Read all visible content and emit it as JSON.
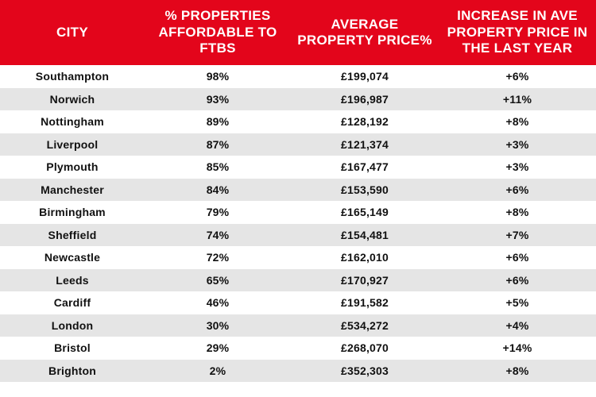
{
  "type": "table",
  "colors": {
    "header_bg": "#e3051b",
    "header_fg": "#ffffff",
    "row_odd": "#ffffff",
    "row_even": "#e5e5e5",
    "text": "#111111"
  },
  "columns": [
    {
      "key": "city",
      "label": "CITY",
      "width": 182
    },
    {
      "key": "affordable",
      "label": "% PROPERTIES AFFORDABLE TO FTBS",
      "width": 184
    },
    {
      "key": "avg_price",
      "label": "AVERAGE PROPERTY PRICE%",
      "width": 186
    },
    {
      "key": "increase",
      "label": "INCREASE IN AVE PROPERTY PRICE IN THE LAST  YEAR",
      "width": 198
    }
  ],
  "rows": [
    {
      "city": "Southampton",
      "affordable": "98%",
      "avg_price": "£199,074",
      "increase": "+6%"
    },
    {
      "city": "Norwich",
      "affordable": "93%",
      "avg_price": "£196,987",
      "increase": "+11%"
    },
    {
      "city": "Nottingham",
      "affordable": "89%",
      "avg_price": "£128,192",
      "increase": "+8%"
    },
    {
      "city": "Liverpool",
      "affordable": "87%",
      "avg_price": "£121,374",
      "increase": "+3%"
    },
    {
      "city": "Plymouth",
      "affordable": "85%",
      "avg_price": "£167,477",
      "increase": "+3%"
    },
    {
      "city": "Manchester",
      "affordable": "84%",
      "avg_price": "£153,590",
      "increase": "+6%"
    },
    {
      "city": "Birmingham",
      "affordable": "79%",
      "avg_price": "£165,149",
      "increase": "+8%"
    },
    {
      "city": "Sheffield",
      "affordable": "74%",
      "avg_price": "£154,481",
      "increase": "+7%"
    },
    {
      "city": "Newcastle",
      "affordable": "72%",
      "avg_price": "£162,010",
      "increase": "+6%"
    },
    {
      "city": "Leeds",
      "affordable": "65%",
      "avg_price": "£170,927",
      "increase": "+6%"
    },
    {
      "city": "Cardiff",
      "affordable": "46%",
      "avg_price": "£191,582",
      "increase": "+5%"
    },
    {
      "city": "London",
      "affordable": "30%",
      "avg_price": "£534,272",
      "increase": "+4%"
    },
    {
      "city": "Bristol",
      "affordable": "29%",
      "avg_price": "£268,070",
      "increase": "+14%"
    },
    {
      "city": "Brighton",
      "affordable": "2%",
      "avg_price": "£352,303",
      "increase": "+8%"
    }
  ],
  "fontsizes": {
    "header": 17,
    "cell": 14
  }
}
